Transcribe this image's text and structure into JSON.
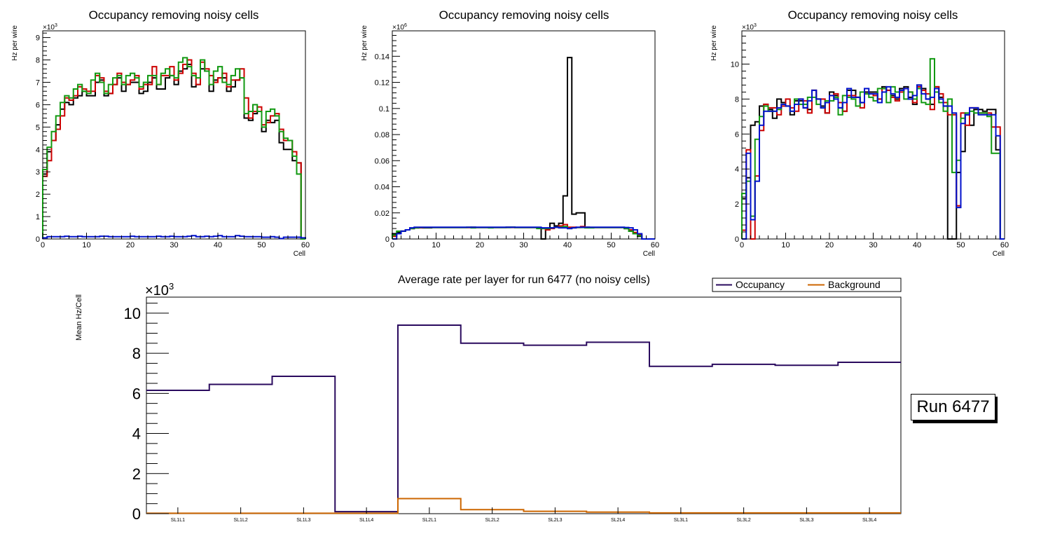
{
  "chart_data": [
    {
      "type": "line",
      "style": "step-histogram",
      "title": "Occupancy removing noisy cells",
      "xlabel": "Cell",
      "ylabel": "Hz per wire",
      "y_multiplier": "×10^3",
      "y_exponent": "3",
      "xlim": [
        0,
        60
      ],
      "ylim": [
        0,
        9.3
      ],
      "xticks": [
        "0",
        "10",
        "20",
        "30",
        "40",
        "50",
        "60"
      ],
      "yticks": [
        "0",
        "1",
        "2",
        "3",
        "4",
        "5",
        "6",
        "7",
        "8",
        "9"
      ],
      "ytick_values": [
        0,
        1,
        2,
        3,
        4,
        5,
        6,
        7,
        8,
        9
      ],
      "xtick_values": [
        0,
        10,
        20,
        30,
        40,
        50,
        60
      ],
      "grid": false,
      "bins": 60,
      "series": [
        {
          "name": "black",
          "color": "#000000",
          "values": [
            2.9,
            3.9,
            4.4,
            5.1,
            5.8,
            6.1,
            6.0,
            6.3,
            6.4,
            6.6,
            6.4,
            6.4,
            7.0,
            7.1,
            6.4,
            6.5,
            6.9,
            7.2,
            6.6,
            6.9,
            7.0,
            7.0,
            6.5,
            6.6,
            7.0,
            7.2,
            6.7,
            6.7,
            7.2,
            7.3,
            6.9,
            7.5,
            7.6,
            7.8,
            6.8,
            6.9,
            7.6,
            7.5,
            6.6,
            7.1,
            7.2,
            7.2,
            6.6,
            6.8,
            7.1,
            7.2,
            5.4,
            5.3,
            5.6,
            5.7,
            4.8,
            5.3,
            5.2,
            5.3,
            4.3,
            4.0,
            4.0,
            3.5,
            3.4,
            0.0
          ]
        },
        {
          "name": "red",
          "color": "#cc0000",
          "values": [
            2.8,
            3.5,
            4.4,
            4.9,
            5.5,
            6.3,
            6.2,
            6.4,
            6.8,
            6.7,
            6.6,
            6.6,
            7.3,
            7.2,
            6.6,
            6.5,
            6.9,
            7.4,
            7.0,
            6.9,
            7.1,
            7.3,
            6.7,
            6.9,
            6.9,
            7.7,
            6.9,
            7.3,
            7.3,
            7.7,
            7.1,
            7.4,
            7.8,
            8.0,
            7.4,
            6.9,
            7.9,
            7.6,
            7.3,
            7.0,
            7.2,
            7.4,
            6.8,
            7.1,
            7.1,
            7.6,
            6.3,
            5.4,
            5.7,
            5.9,
            5.1,
            5.2,
            5.5,
            5.6,
            4.9,
            4.4,
            4.4,
            3.9,
            3.4,
            0.0
          ]
        },
        {
          "name": "green",
          "color": "#119911",
          "values": [
            3.1,
            4.1,
            4.8,
            5.5,
            6.1,
            6.4,
            6.3,
            6.7,
            6.9,
            6.6,
            6.5,
            7.1,
            7.4,
            7.0,
            6.5,
            6.9,
            7.2,
            7.3,
            6.9,
            7.3,
            7.4,
            7.2,
            6.8,
            7.0,
            7.3,
            7.3,
            6.9,
            7.4,
            7.6,
            7.3,
            7.2,
            7.9,
            8.1,
            7.7,
            7.3,
            7.2,
            8.0,
            7.5,
            6.9,
            7.5,
            7.7,
            7.0,
            6.9,
            7.3,
            7.6,
            7.2,
            5.6,
            5.7,
            6.0,
            5.7,
            5.0,
            5.7,
            5.8,
            5.5,
            4.8,
            4.5,
            4.4,
            3.7,
            2.9,
            0.0
          ]
        },
        {
          "name": "blue",
          "color": "#0011cc",
          "values": [
            0.05,
            0.1,
            0.1,
            0.1,
            0.1,
            0.12,
            0.1,
            0.1,
            0.12,
            0.1,
            0.1,
            0.1,
            0.1,
            0.12,
            0.12,
            0.1,
            0.1,
            0.1,
            0.1,
            0.1,
            0.12,
            0.1,
            0.1,
            0.1,
            0.1,
            0.1,
            0.12,
            0.1,
            0.1,
            0.12,
            0.1,
            0.1,
            0.1,
            0.12,
            0.15,
            0.1,
            0.1,
            0.12,
            0.1,
            0.12,
            0.15,
            0.1,
            0.1,
            0.1,
            0.15,
            0.12,
            0.1,
            0.1,
            0.1,
            0.1,
            0.08,
            0.08,
            0.1,
            0.08,
            0.02,
            0.08,
            0.08,
            0.08,
            0.08,
            0.05
          ]
        }
      ]
    },
    {
      "type": "line",
      "style": "step-histogram",
      "title": "Occupancy removing noisy cells",
      "xlabel": "Cell",
      "ylabel": "Hz per wire",
      "y_multiplier": "×10^6",
      "y_exponent": "6",
      "xlim": [
        0,
        60
      ],
      "ylim": [
        0,
        0.1595
      ],
      "xticks": [
        "0",
        "10",
        "20",
        "30",
        "40",
        "50",
        "60"
      ],
      "xtick_values": [
        0,
        10,
        20,
        30,
        40,
        50,
        60
      ],
      "yticks": [
        "0",
        "0.02",
        "0.04",
        "0.06",
        "0.08",
        "0.1",
        "0.12",
        "0.14"
      ],
      "ytick_values": [
        0,
        0.02,
        0.04,
        0.06,
        0.08,
        0.1,
        0.12,
        0.14
      ],
      "grid": false,
      "bins": 60,
      "series": [
        {
          "name": "black",
          "color": "#000000",
          "values": [
            0.004,
            0.005,
            0.006,
            0.007,
            0.008,
            0.0085,
            0.0088,
            0.0085,
            0.0085,
            0.0088,
            0.0088,
            0.0088,
            0.0088,
            0.0088,
            0.0088,
            0.0088,
            0.0088,
            0.0088,
            0.009,
            0.0088,
            0.0088,
            0.0088,
            0.0088,
            0.0088,
            0.0088,
            0.0088,
            0.009,
            0.009,
            0.0088,
            0.0088,
            0.0088,
            0.0088,
            0.0088,
            0.0088,
            0.0,
            0.008,
            0.012,
            0.01,
            0.012,
            0.033,
            0.139,
            0.019,
            0.02,
            0.02,
            0.009,
            0.0088,
            0.0088,
            0.0088,
            0.0088,
            0.0088,
            0.0088,
            0.0088,
            0.0088,
            0.008,
            0.006,
            0.004,
            0.002,
            0.0,
            0.0,
            0.0
          ]
        },
        {
          "name": "red",
          "color": "#cc0000",
          "values": [
            0.002,
            0.004,
            0.006,
            0.007,
            0.008,
            0.0085,
            0.0085,
            0.0088,
            0.0088,
            0.0088,
            0.0088,
            0.0088,
            0.0088,
            0.0088,
            0.0088,
            0.0088,
            0.0088,
            0.0088,
            0.0088,
            0.0088,
            0.0088,
            0.0088,
            0.0088,
            0.0088,
            0.0088,
            0.0088,
            0.0088,
            0.0088,
            0.0088,
            0.0088,
            0.0088,
            0.0088,
            0.0088,
            0.0085,
            0.008,
            0.007,
            0.008,
            0.009,
            0.01,
            0.011,
            0.009,
            0.009,
            0.0088,
            0.0095,
            0.0088,
            0.0088,
            0.0088,
            0.0088,
            0.0088,
            0.0088,
            0.0088,
            0.0088,
            0.0088,
            0.008,
            0.007,
            0.005,
            0.003,
            0.0,
            0.0,
            0.0
          ]
        },
        {
          "name": "green",
          "color": "#119911",
          "values": [
            0.003,
            0.006,
            0.006,
            0.007,
            0.008,
            0.0085,
            0.0088,
            0.0088,
            0.0088,
            0.0088,
            0.0088,
            0.0088,
            0.0088,
            0.0088,
            0.0088,
            0.0088,
            0.0088,
            0.009,
            0.0085,
            0.0088,
            0.0088,
            0.0088,
            0.0085,
            0.0088,
            0.0088,
            0.0088,
            0.0088,
            0.009,
            0.0088,
            0.0088,
            0.0088,
            0.0088,
            0.0088,
            0.008,
            0.008,
            0.008,
            0.0085,
            0.009,
            0.009,
            0.0095,
            0.008,
            0.0085,
            0.0088,
            0.0088,
            0.0085,
            0.0085,
            0.0088,
            0.0088,
            0.0088,
            0.0088,
            0.0088,
            0.0088,
            0.0088,
            0.008,
            0.006,
            0.004,
            0.0025,
            0.0,
            0.0,
            0.0
          ]
        },
        {
          "name": "blue",
          "color": "#0011cc",
          "values": [
            0.0,
            0.004,
            0.006,
            0.007,
            0.0085,
            0.009,
            0.009,
            0.009,
            0.009,
            0.009,
            0.009,
            0.009,
            0.009,
            0.009,
            0.009,
            0.009,
            0.009,
            0.009,
            0.009,
            0.009,
            0.009,
            0.009,
            0.009,
            0.009,
            0.009,
            0.009,
            0.009,
            0.009,
            0.009,
            0.009,
            0.009,
            0.009,
            0.009,
            0.009,
            0.0085,
            0.0085,
            0.0085,
            0.009,
            0.0085,
            0.0085,
            0.008,
            0.0085,
            0.009,
            0.009,
            0.009,
            0.009,
            0.009,
            0.009,
            0.009,
            0.009,
            0.009,
            0.009,
            0.009,
            0.0088,
            0.0085,
            0.007,
            0.004,
            0.0,
            0.0,
            0.0
          ]
        }
      ]
    },
    {
      "type": "line",
      "style": "step-histogram",
      "title": "Occupancy removing noisy cells",
      "xlabel": "Cell",
      "ylabel": "Hz per wire",
      "y_multiplier": "×10^3",
      "y_exponent": "3",
      "xlim": [
        0,
        60
      ],
      "ylim": [
        0,
        11.9
      ],
      "xticks": [
        "0",
        "10",
        "20",
        "30",
        "40",
        "50",
        "60"
      ],
      "xtick_values": [
        0,
        10,
        20,
        30,
        40,
        50,
        60
      ],
      "yticks": [
        "0",
        "2",
        "4",
        "6",
        "8",
        "10"
      ],
      "ytick_values": [
        0,
        2,
        4,
        6,
        8,
        10
      ],
      "grid": false,
      "bins": 60,
      "series": [
        {
          "name": "black",
          "color": "#000000",
          "values": [
            2.3,
            3.5,
            6.5,
            6.7,
            7.6,
            7.7,
            7.4,
            6.9,
            8.0,
            7.8,
            7.6,
            7.1,
            7.9,
            7.9,
            7.5,
            7.4,
            8.5,
            8.0,
            7.6,
            7.2,
            8.4,
            8.2,
            7.5,
            7.3,
            8.5,
            8.5,
            8.1,
            7.8,
            8.4,
            8.4,
            8.4,
            8.0,
            8.7,
            8.5,
            8.2,
            8.0,
            8.6,
            8.7,
            8.1,
            7.7,
            8.8,
            8.6,
            8.0,
            7.7,
            8.7,
            8.1,
            7.6,
            0.0,
            0.0,
            3.8,
            5.0,
            7.1,
            6.5,
            7.4,
            7.4,
            7.3,
            7.4,
            7.4,
            5.1,
            0.0
          ]
        },
        {
          "name": "red",
          "color": "#cc0000",
          "values": [
            0.5,
            5.1,
            0.0,
            3.6,
            6.2,
            7.7,
            7.5,
            7.5,
            7.1,
            7.6,
            8.0,
            7.5,
            7.3,
            8.0,
            7.9,
            7.2,
            8.5,
            8.0,
            8.0,
            7.2,
            8.2,
            8.3,
            7.8,
            7.3,
            8.2,
            8.2,
            8.1,
            7.5,
            8.3,
            8.3,
            8.2,
            8.0,
            8.6,
            8.5,
            8.1,
            7.9,
            8.4,
            8.6,
            8.4,
            7.8,
            8.7,
            8.5,
            8.3,
            7.4,
            8.7,
            8.3,
            7.8,
            7.1,
            7.1,
            1.9,
            7.2,
            6.5,
            7.5,
            7.5,
            7.2,
            7.2,
            7.2,
            6.4,
            6.4,
            0.0
          ]
        },
        {
          "name": "green",
          "color": "#119911",
          "values": [
            2.6,
            3.3,
            1.3,
            5.7,
            7.0,
            7.6,
            7.3,
            7.3,
            7.4,
            7.7,
            7.6,
            7.3,
            8.0,
            7.7,
            7.7,
            8.1,
            8.1,
            7.7,
            7.5,
            7.9,
            7.9,
            8.1,
            7.1,
            8.2,
            8.1,
            8.0,
            7.6,
            8.4,
            8.3,
            8.1,
            7.9,
            8.6,
            8.6,
            7.8,
            8.7,
            8.4,
            8.5,
            8.0,
            8.4,
            8.0,
            8.6,
            7.8,
            7.7,
            10.3,
            8.4,
            7.8,
            7.3,
            8.0,
            3.8,
            4.5,
            6.9,
            7.2,
            7.3,
            7.2,
            7.2,
            7.2,
            7.0,
            4.9,
            4.9,
            0.0
          ]
        },
        {
          "name": "blue",
          "color": "#0011cc",
          "values": [
            0.0,
            4.9,
            1.1,
            3.3,
            6.5,
            7.3,
            7.3,
            7.3,
            7.5,
            7.7,
            7.6,
            7.3,
            7.7,
            8.0,
            7.5,
            7.9,
            8.5,
            8.0,
            7.5,
            7.8,
            8.2,
            8.0,
            7.5,
            7.8,
            8.6,
            8.1,
            8.1,
            7.8,
            8.6,
            8.3,
            8.3,
            7.8,
            8.4,
            8.7,
            8.3,
            8.1,
            8.5,
            8.6,
            8.0,
            8.2,
            8.8,
            8.3,
            8.0,
            8.1,
            8.6,
            8.0,
            7.6,
            7.6,
            7.2,
            1.8,
            6.6,
            7.1,
            7.5,
            7.5,
            7.1,
            7.1,
            7.1,
            7.1,
            5.9,
            0.0
          ]
        }
      ]
    },
    {
      "type": "line",
      "style": "step-histogram",
      "title": "Average rate per layer for run 6477 (no noisy cells)",
      "xlabel": "",
      "ylabel": "Mean Hz/Cell",
      "y_multiplier": "×10^3",
      "y_exponent": "3",
      "ylim": [
        0,
        10.8
      ],
      "yticks": [
        "0",
        "2",
        "4",
        "6",
        "8",
        "10"
      ],
      "ytick_values": [
        0,
        2,
        4,
        6,
        8,
        10
      ],
      "categories": [
        "SL1L1",
        "SL1L2",
        "SL1L3",
        "SL1L4",
        "SL2L1",
        "SL2L2",
        "SL2L3",
        "SL2L4",
        "SL3L1",
        "SL3L2",
        "SL3L3",
        "SL3L4"
      ],
      "grid": false,
      "legend_position": "top-right",
      "series": [
        {
          "name": "Occupancy",
          "color": "#2a0a5e",
          "values": [
            6.15,
            6.45,
            6.85,
            0.1,
            9.4,
            8.5,
            8.4,
            8.55,
            7.35,
            7.45,
            7.4,
            7.55
          ]
        },
        {
          "name": "Background",
          "color": "#cc6600",
          "values": [
            0.02,
            0.02,
            0.02,
            0.02,
            0.75,
            0.2,
            0.12,
            0.08,
            0.04,
            0.04,
            0.04,
            0.04
          ]
        }
      ]
    }
  ],
  "legend": {
    "occupancy_label": "Occupancy",
    "background_label": "Background"
  },
  "run_label": "Run 6477"
}
